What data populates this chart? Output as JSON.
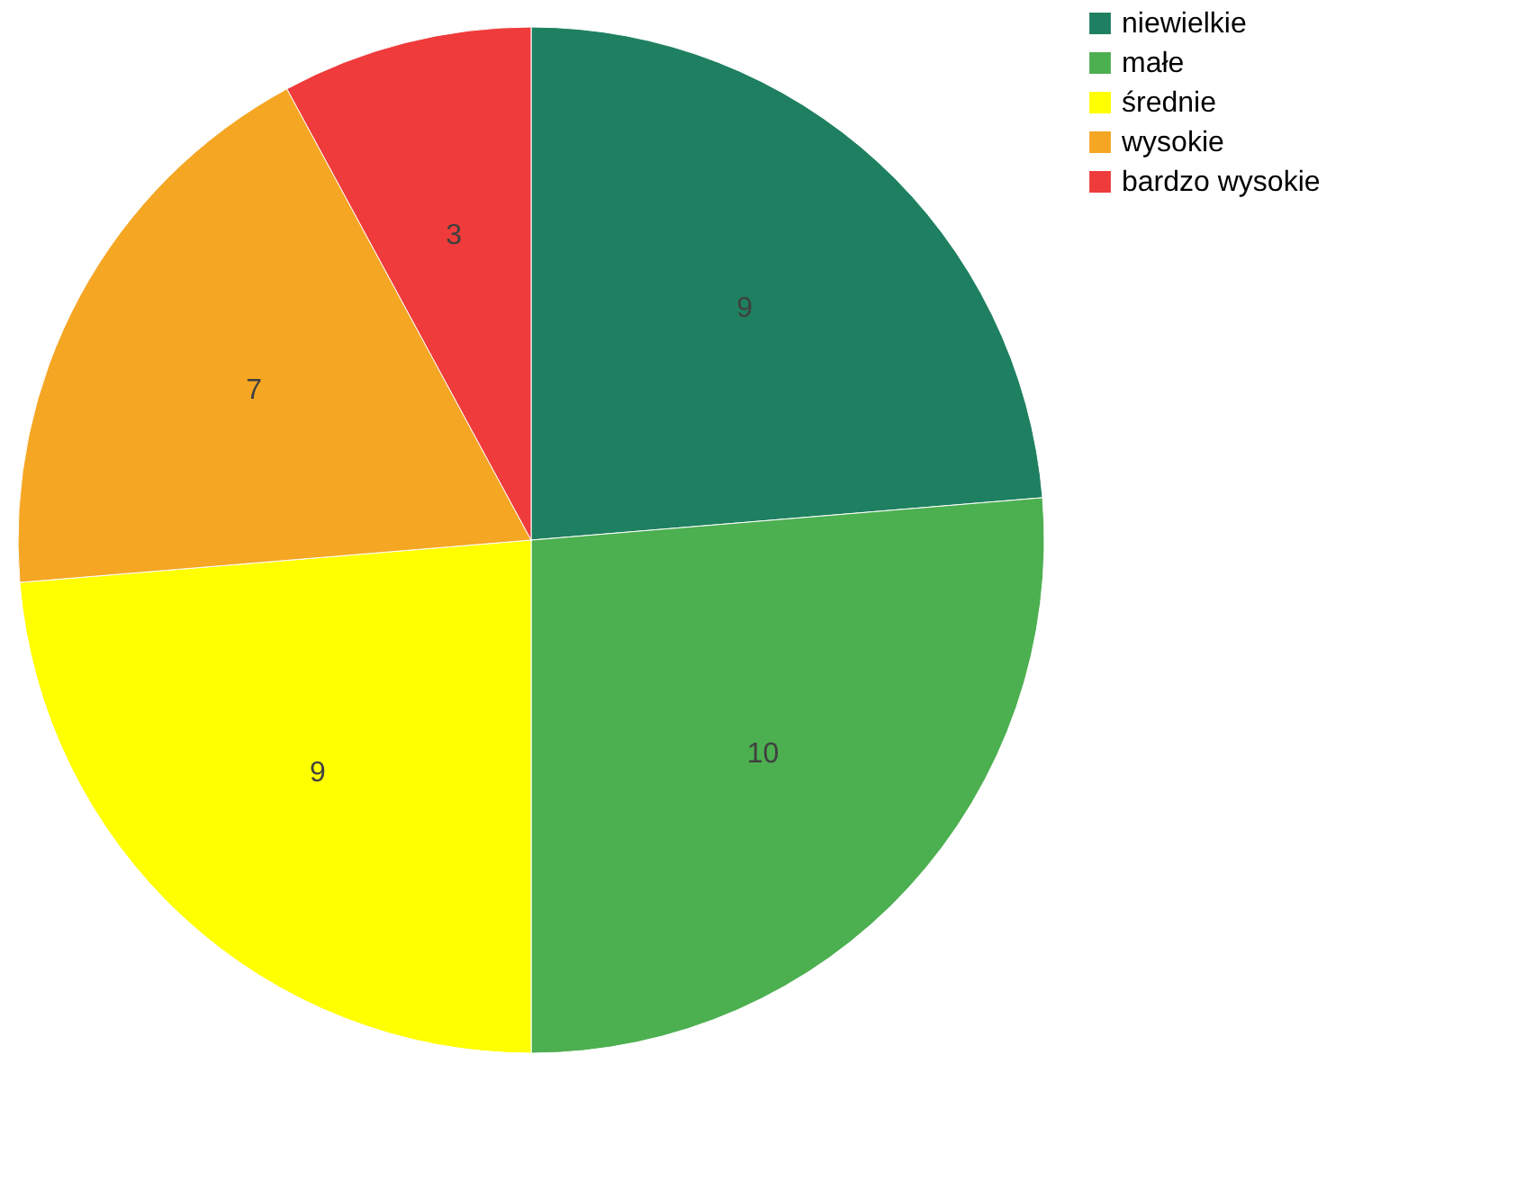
{
  "chart_data": {
    "type": "pie",
    "categories": [
      "niewielkie",
      "małe",
      "średnie",
      "wysokie",
      "bardzo wysokie"
    ],
    "values": [
      9,
      10,
      9,
      7,
      3
    ],
    "colors": [
      "#1e8060",
      "#4caf50",
      "#ffff00",
      "#f5a623",
      "#ef3b3b"
    ],
    "data_labels": true,
    "legend": "right"
  }
}
